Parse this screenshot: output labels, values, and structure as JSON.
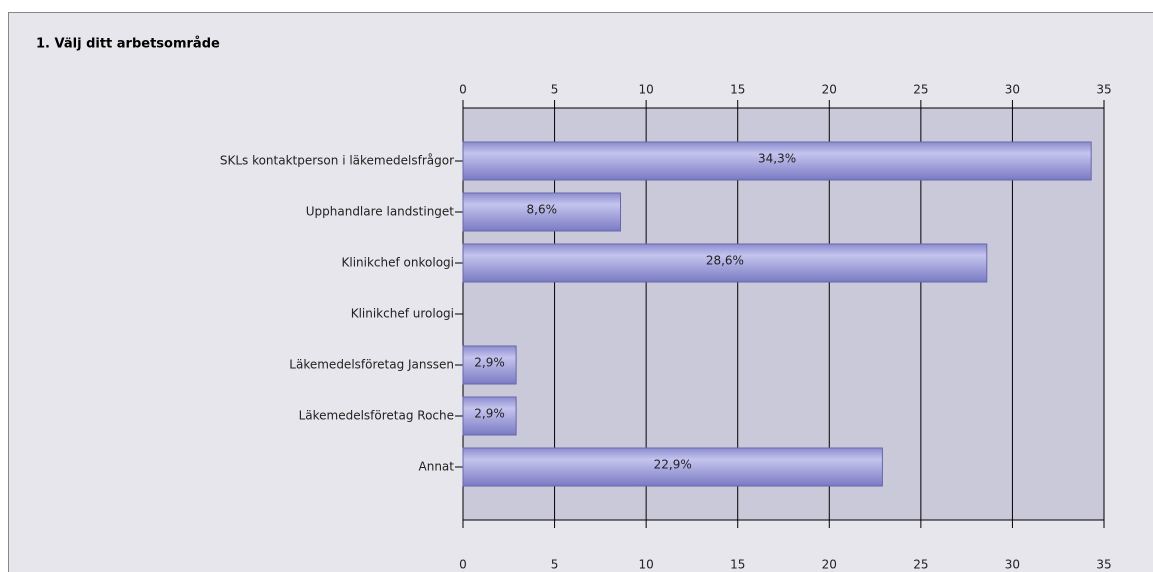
{
  "chart_data": {
    "type": "barh",
    "title": "1. Välj ditt arbetsområde",
    "categories": [
      "SKLs kontaktperson i läkemedelsfrågor",
      "Upphandlare landstinget",
      "Klinikchef onkologi",
      "Klinikchef urologi",
      "Läkemedelsföretag Janssen",
      "Läkemedelsföretag Roche",
      "Annat"
    ],
    "values": [
      34.3,
      8.6,
      28.6,
      0,
      2.9,
      2.9,
      22.9
    ],
    "value_labels": [
      "34,3%",
      "8,6%",
      "28,6%",
      null,
      "2,9%",
      "2,9%",
      "22,9%"
    ],
    "color": "#a4a4dc",
    "xlim": [
      0,
      35
    ],
    "xticks": [
      0,
      5,
      10,
      15,
      20,
      25,
      30,
      35
    ],
    "grid": true
  }
}
